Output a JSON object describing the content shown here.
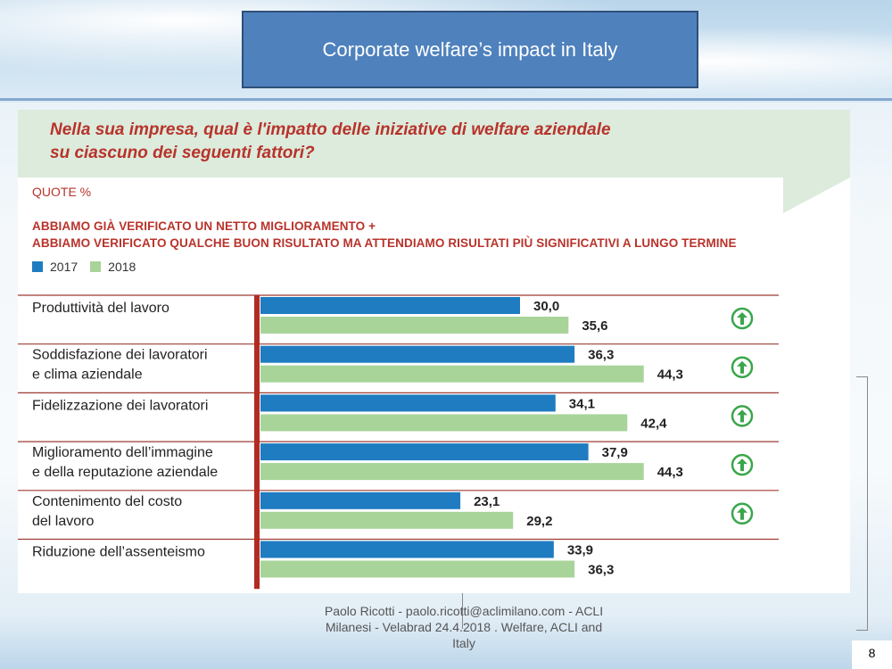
{
  "slide": {
    "title": "Corporate welfare’s impact in Italy",
    "page_number": "8",
    "footer": "Paolo Ricotti - paolo.ricotti@aclimilano.com - ACLI Milanesi - Velabrad 24.4.2018 . Welfare, ACLI and Italy"
  },
  "chart_header": {
    "question_line1": "Nella sua impresa, qual è l'impatto delle iniziative di welfare aziendale",
    "question_line2": "su ciascuno dei seguenti fattori?",
    "units": "QUOTE %",
    "subtitle_line1": "ABBIAMO GIÀ VERIFICATO UN NETTO MIGLIORAMENTO +",
    "subtitle_line2": "ABBIAMO VERIFICATO QUALCHE BUON RISULTATO MA ATTENDIAMO RISULTATI PIÙ SIGNIFICATIVI A LUNGO TERMINE"
  },
  "colors": {
    "series_2017": "#1f7cc1",
    "series_2018": "#a8d49a",
    "axis": "#b22a22",
    "row_line": "#9e3b32",
    "up_icon": "#3aa64a"
  },
  "chart_data": {
    "type": "bar",
    "orientation": "horizontal",
    "xlim": [
      0,
      50
    ],
    "categories": [
      [
        "Produttività del lavoro"
      ],
      [
        "Soddisfazione dei lavoratori",
        "e clima aziendale"
      ],
      [
        "Fidelizzazione dei lavoratori"
      ],
      [
        "Miglioramento dell’immagine",
        "e della reputazione aziendale"
      ],
      [
        "Contenimento del costo",
        "del lavoro"
      ],
      [
        "Riduzione dell’assenteismo"
      ]
    ],
    "series": [
      {
        "name": "2017",
        "values": [
          30.0,
          36.3,
          34.1,
          37.9,
          23.1,
          33.9
        ],
        "labels": [
          "30,0",
          "36,3",
          "34,1",
          "37,9",
          "23,1",
          "33,9"
        ]
      },
      {
        "name": "2018",
        "values": [
          35.6,
          44.3,
          42.4,
          44.3,
          29.2,
          36.3
        ],
        "labels": [
          "35,6",
          "44,3",
          "42,4",
          "44,3",
          "29,2",
          "36,3"
        ]
      }
    ],
    "trend_up": [
      true,
      true,
      true,
      true,
      true,
      false
    ],
    "legend": "top-left",
    "grid": false
  }
}
